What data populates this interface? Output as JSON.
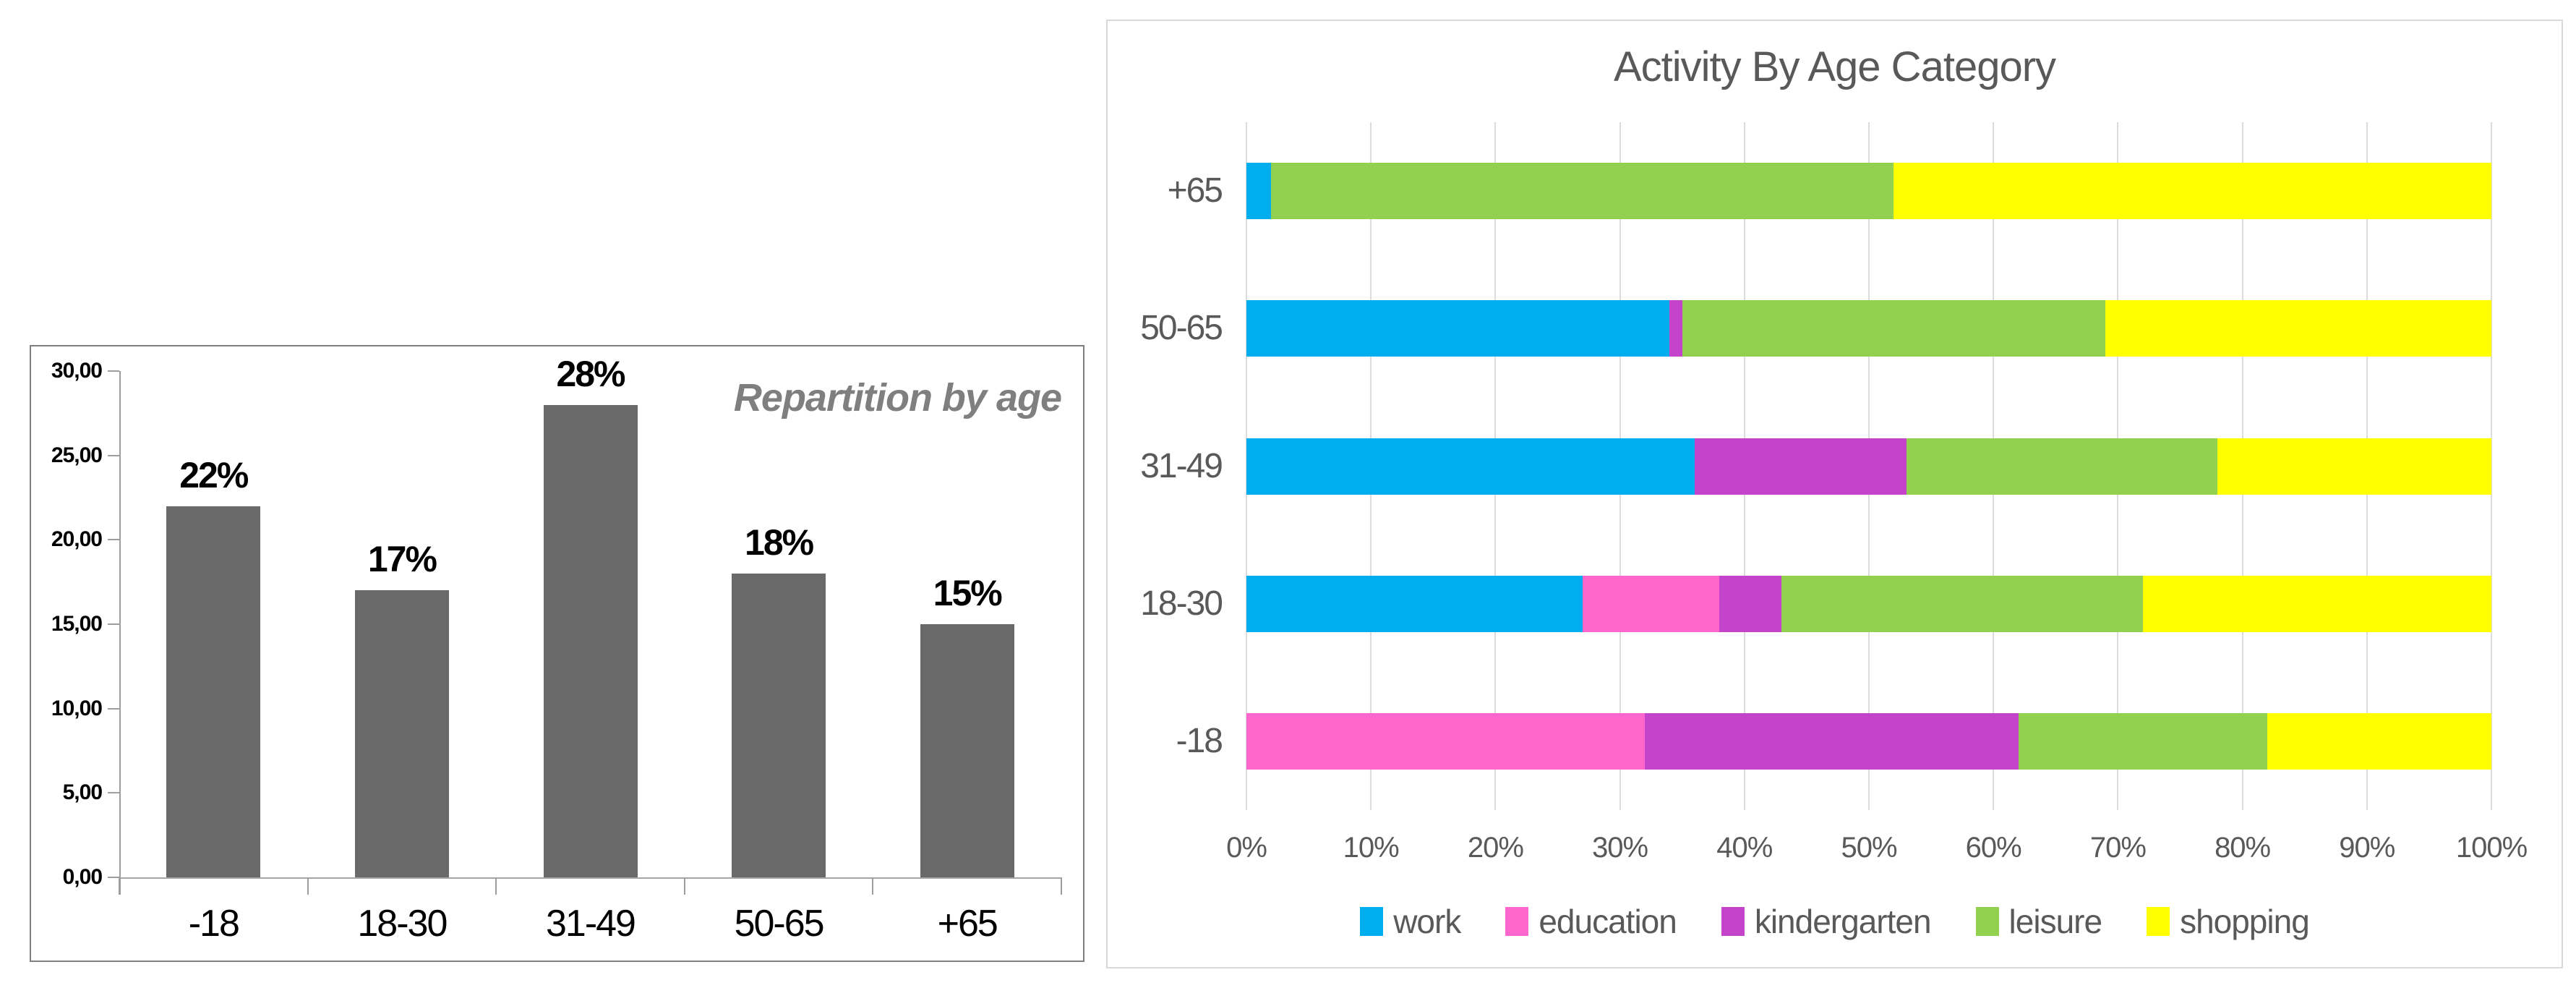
{
  "chart_data": [
    {
      "type": "bar",
      "title": "Repartition by age",
      "title_color": "#7f7f7f",
      "categories": [
        "-18",
        "18-30",
        "31-49",
        "50-65",
        "+65"
      ],
      "values": [
        22,
        17,
        28,
        18,
        15
      ],
      "data_labels": [
        "22%",
        "17%",
        "28%",
        "18%",
        "15%"
      ],
      "bar_color": "#696969",
      "ylim": [
        0,
        30
      ],
      "ytick_step": 5,
      "ytick_labels_bottom_to_top": [
        "0,00",
        "5,00",
        "10,00",
        "15,00",
        "20,00",
        "25,00",
        "30,00"
      ],
      "grid": false,
      "legend_position": "none"
    },
    {
      "type": "bar",
      "orientation": "horizontal-stacked",
      "title": "Activity By Age Category",
      "title_color": "#595959",
      "categories_top_to_bottom": [
        "+65",
        "50-65",
        "31-49",
        "18-30",
        "-18"
      ],
      "series": [
        {
          "name": "work",
          "color": "#00aeef",
          "values": [
            2,
            34,
            36,
            27,
            0
          ]
        },
        {
          "name": "education",
          "color": "#ff66cc",
          "values": [
            0,
            0,
            0,
            11,
            32
          ]
        },
        {
          "name": "kindergarten",
          "color": "#c344cb",
          "values": [
            0,
            1,
            17,
            5,
            30
          ]
        },
        {
          "name": "leisure",
          "color": "#92d050",
          "values": [
            50,
            34,
            25,
            29,
            20
          ]
        },
        {
          "name": "shopping",
          "color": "#ffff00",
          "values": [
            48,
            31,
            22,
            28,
            18
          ]
        }
      ],
      "xlim": [
        0,
        100
      ],
      "xtick_labels": [
        "0%",
        "10%",
        "20%",
        "30%",
        "40%",
        "50%",
        "60%",
        "70%",
        "80%",
        "90%",
        "100%"
      ],
      "grid": true,
      "gridline_color": "#dcdcdc",
      "legend_position": "bottom",
      "legend_items": [
        "work",
        "education",
        "kindergarten",
        "leisure",
        "shopping"
      ]
    }
  ]
}
